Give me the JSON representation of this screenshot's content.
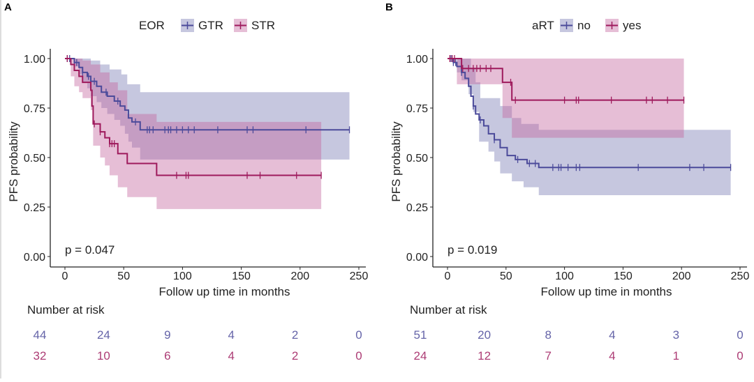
{
  "chart_data": [
    {
      "type": "line",
      "panel_label": "A",
      "subtype": "kaplan-meier",
      "legend_title": "EOR",
      "legend_placement": "top",
      "xlabel": "Follow up time in months",
      "ylabel": "PFS probability",
      "xlim": [
        0,
        250
      ],
      "ylim": [
        0,
        1
      ],
      "xticks": [
        "0",
        "50",
        "100",
        "150",
        "200",
        "250"
      ],
      "yticks": [
        "0.00",
        "0.25",
        "0.50",
        "0.75",
        "1.00"
      ],
      "pvalue": "p = 0.047",
      "series": [
        {
          "name": "GTR",
          "color": "#4b4a9a",
          "fill": "rgba(120,122,178,0.42)",
          "end": 242,
          "steps": [
            [
              0,
              1
            ],
            [
              8,
              0.98
            ],
            [
              12,
              0.955
            ],
            [
              15,
              0.93
            ],
            [
              19,
              0.91
            ],
            [
              22,
              0.885
            ],
            [
              27,
              0.86
            ],
            [
              31,
              0.83
            ],
            [
              36,
              0.81
            ],
            [
              42,
              0.785
            ],
            [
              47,
              0.76
            ],
            [
              51,
              0.74
            ],
            [
              54,
              0.7
            ],
            [
              57,
              0.68
            ],
            [
              64,
              0.64
            ]
          ],
          "ci_upper": [
            [
              0,
              1
            ],
            [
              22,
              0.99
            ],
            [
              30,
              0.97
            ],
            [
              38,
              0.945
            ],
            [
              48,
              0.92
            ],
            [
              53,
              0.87
            ],
            [
              64,
              0.83
            ]
          ],
          "ci_lower": [
            [
              0,
              1
            ],
            [
              8,
              0.96
            ],
            [
              12,
              0.92
            ],
            [
              15,
              0.88
            ],
            [
              19,
              0.85
            ],
            [
              22,
              0.81
            ],
            [
              27,
              0.78
            ],
            [
              31,
              0.75
            ],
            [
              36,
              0.72
            ],
            [
              42,
              0.69
            ],
            [
              47,
              0.66
            ],
            [
              51,
              0.62
            ],
            [
              54,
              0.58
            ],
            [
              57,
              0.55
            ],
            [
              64,
              0.49
            ]
          ],
          "censored": [
            2,
            4,
            8,
            10,
            15,
            20,
            25,
            35,
            45,
            60,
            70,
            72,
            75,
            85,
            88,
            90,
            95,
            100,
            105,
            110,
            130,
            155,
            160,
            205,
            242
          ]
        },
        {
          "name": "STR",
          "color": "#9e1a5c",
          "fill": "rgba(196,100,158,0.42)",
          "end": 218,
          "steps": [
            [
              0,
              1
            ],
            [
              5,
              0.97
            ],
            [
              8,
              0.94
            ],
            [
              12,
              0.91
            ],
            [
              15,
              0.88
            ],
            [
              22,
              0.84
            ],
            [
              23,
              0.76
            ],
            [
              24,
              0.67
            ],
            [
              30,
              0.63
            ],
            [
              34,
              0.6
            ],
            [
              38,
              0.57
            ],
            [
              45,
              0.52
            ],
            [
              53,
              0.47
            ],
            [
              78,
              0.41
            ]
          ],
          "ci_upper": [
            [
              0,
              1
            ],
            [
              15,
              0.99
            ],
            [
              22,
              0.97
            ],
            [
              30,
              0.93
            ],
            [
              38,
              0.88
            ],
            [
              45,
              0.84
            ],
            [
              53,
              0.72
            ],
            [
              78,
              0.68
            ]
          ],
          "ci_lower": [
            [
              0,
              1
            ],
            [
              5,
              0.91
            ],
            [
              8,
              0.86
            ],
            [
              12,
              0.83
            ],
            [
              15,
              0.8
            ],
            [
              22,
              0.74
            ],
            [
              24,
              0.56
            ],
            [
              30,
              0.5
            ],
            [
              34,
              0.46
            ],
            [
              38,
              0.41
            ],
            [
              45,
              0.35
            ],
            [
              53,
              0.3
            ],
            [
              78,
              0.24
            ]
          ],
          "censored": [
            2,
            25,
            30,
            38,
            40,
            42,
            95,
            103,
            105,
            155,
            166,
            197,
            218
          ]
        }
      ],
      "risk_table": {
        "title": "Number at risk",
        "rows": [
          {
            "name": "GTR",
            "values": [
              "44",
              "24",
              "9",
              "4",
              "2",
              "0"
            ]
          },
          {
            "name": "STR",
            "values": [
              "32",
              "10",
              "6",
              "4",
              "2",
              "0"
            ]
          }
        ]
      }
    },
    {
      "type": "line",
      "panel_label": "B",
      "subtype": "kaplan-meier",
      "legend_title": "aRT",
      "legend_placement": "top",
      "xlabel": "Follow up time in months",
      "ylabel": "PFS probability",
      "xlim": [
        0,
        250
      ],
      "ylim": [
        0,
        1
      ],
      "xticks": [
        "0",
        "50",
        "100",
        "150",
        "200",
        "250"
      ],
      "yticks": [
        "0.00",
        "0.25",
        "0.50",
        "0.75",
        "1.00"
      ],
      "pvalue": "p = 0.019",
      "series": [
        {
          "name": "no",
          "color": "#4b4a9a",
          "fill": "rgba(120,122,178,0.42)",
          "end": 242,
          "steps": [
            [
              0,
              1
            ],
            [
              5,
              0.98
            ],
            [
              8,
              0.96
            ],
            [
              12,
              0.93
            ],
            [
              15,
              0.9
            ],
            [
              18,
              0.86
            ],
            [
              20,
              0.81
            ],
            [
              22,
              0.76
            ],
            [
              24,
              0.72
            ],
            [
              27,
              0.69
            ],
            [
              31,
              0.66
            ],
            [
              35,
              0.62
            ],
            [
              40,
              0.59
            ],
            [
              45,
              0.55
            ],
            [
              51,
              0.51
            ],
            [
              58,
              0.49
            ],
            [
              68,
              0.47
            ],
            [
              78,
              0.45
            ]
          ],
          "ci_upper": [
            [
              0,
              1
            ],
            [
              20,
              0.95
            ],
            [
              24,
              0.88
            ],
            [
              28,
              0.8
            ],
            [
              45,
              0.76
            ],
            [
              55,
              0.7
            ],
            [
              63,
              0.67
            ],
            [
              78,
              0.64
            ]
          ],
          "ci_lower": [
            [
              0,
              1
            ],
            [
              8,
              0.93
            ],
            [
              12,
              0.89
            ],
            [
              18,
              0.82
            ],
            [
              22,
              0.73
            ],
            [
              27,
              0.58
            ],
            [
              35,
              0.53
            ],
            [
              40,
              0.48
            ],
            [
              45,
              0.42
            ],
            [
              55,
              0.38
            ],
            [
              65,
              0.35
            ],
            [
              78,
              0.31
            ]
          ],
          "censored": [
            3,
            5,
            7,
            12,
            22,
            28,
            40,
            60,
            70,
            75,
            90,
            95,
            97,
            103,
            110,
            113,
            163,
            207,
            219,
            242
          ]
        },
        {
          "name": "yes",
          "color": "#9e1a5c",
          "fill": "rgba(196,100,158,0.42)",
          "end": 202,
          "steps": [
            [
              0,
              1
            ],
            [
              12,
              0.95
            ],
            [
              47,
              0.88
            ],
            [
              55,
              0.79
            ]
          ],
          "ci_upper": [
            [
              0,
              1
            ]
          ],
          "ci_lower": [
            [
              0,
              1
            ],
            [
              8,
              0.87
            ],
            [
              47,
              0.7
            ],
            [
              55,
              0.6
            ]
          ],
          "censored": [
            2,
            4,
            6,
            13,
            18,
            22,
            25,
            28,
            33,
            37,
            54,
            58,
            100,
            110,
            112,
            140,
            170,
            175,
            188,
            202
          ]
        }
      ],
      "risk_table": {
        "title": "Number at risk",
        "rows": [
          {
            "name": "no",
            "values": [
              "51",
              "20",
              "8",
              "4",
              "3",
              "0"
            ]
          },
          {
            "name": "yes",
            "values": [
              "24",
              "12",
              "7",
              "4",
              "1",
              "0"
            ]
          }
        ]
      }
    }
  ]
}
